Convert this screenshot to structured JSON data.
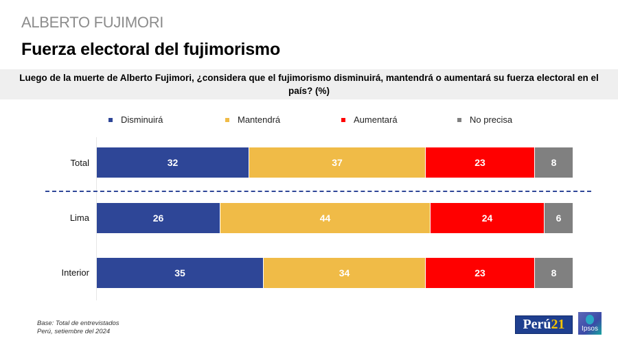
{
  "header": {
    "supertitle": "ALBERTO FUJIMORI",
    "title": "Fuerza electoral del fujimorismo"
  },
  "question": "Luego de la muerte de Alberto Fujimori, ¿considera que el fujimorismo disminuirá, mantendrá o aumentará su fuerza electoral en el país? (%)",
  "footnote": {
    "line1": "Base: Total de entrevistados",
    "line2": "Perú, setiembre del 2024"
  },
  "logos": {
    "peru21_part1": "Perú",
    "peru21_part2": "21",
    "ipsos": "Ipsos"
  },
  "chart_data": {
    "type": "bar",
    "orientation": "horizontal",
    "stacked": true,
    "title": "Fuerza electoral del fujimorismo",
    "xlabel": "",
    "ylabel": "",
    "xlim": [
      0,
      100
    ],
    "grid": false,
    "legend_position": "top",
    "categories": [
      "Total",
      "Lima",
      "Interior"
    ],
    "series": [
      {
        "name": "Disminuirá",
        "color": "#2e4697",
        "values": [
          32,
          26,
          35
        ]
      },
      {
        "name": "Mantendrá",
        "color": "#f0bb47",
        "values": [
          37,
          44,
          34
        ]
      },
      {
        "name": "Aumentará",
        "color": "#ff0000",
        "values": [
          23,
          24,
          23
        ]
      },
      {
        "name": "No precisa",
        "color": "#808080",
        "values": [
          8,
          6,
          8
        ]
      }
    ],
    "separator_after_category": "Total"
  }
}
